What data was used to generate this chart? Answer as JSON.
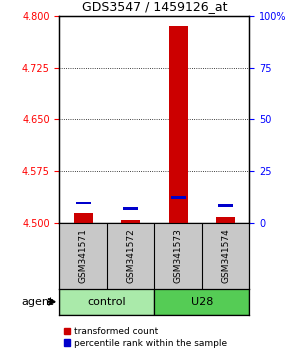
{
  "title": "GDS3547 / 1459126_at",
  "samples": [
    "GSM341571",
    "GSM341572",
    "GSM341573",
    "GSM341574"
  ],
  "groups": [
    "control",
    "control",
    "U28",
    "U28"
  ],
  "red_values": [
    4.515,
    4.505,
    4.785,
    4.508
  ],
  "blue_values": [
    4.527,
    4.519,
    4.535,
    4.523
  ],
  "blue_bar_height": 0.004,
  "red_bar_width": 0.4,
  "blue_bar_width": 0.32,
  "ylim": [
    4.5,
    4.8
  ],
  "yticks_left": [
    4.5,
    4.575,
    4.65,
    4.725,
    4.8
  ],
  "ytick_right_vals": [
    0,
    25,
    50,
    75,
    100
  ],
  "dotted_lines": [
    4.575,
    4.65,
    4.725
  ],
  "red_color": "#CC0000",
  "blue_color": "#0000CC",
  "sample_bg": "#c8c8c8",
  "control_color": "#aaeaaa",
  "u28_color": "#55cc55",
  "legend_red": "transformed count",
  "legend_blue": "percentile rank within the sample",
  "title_fontsize": 9,
  "tick_fontsize": 7,
  "sample_fontsize": 6.5,
  "group_fontsize": 8,
  "legend_fontsize": 6.5
}
